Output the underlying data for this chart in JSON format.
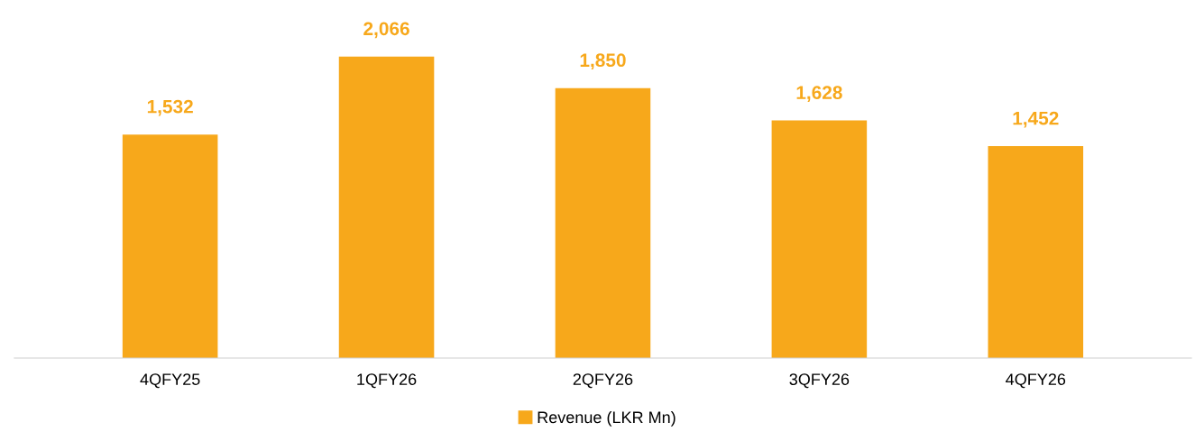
{
  "chart_data": {
    "type": "bar",
    "categories": [
      "4QFY25",
      "1QFY26",
      "2QFY26",
      "3QFY26",
      "4QFY26"
    ],
    "series": [
      {
        "name": "Revenue (LKR Mn)",
        "color": "#f7a81b",
        "values": [
          1532,
          2066,
          1850,
          1628,
          1452
        ],
        "value_labels": [
          "1,532",
          "2,066",
          "1,850",
          "1,628",
          "1,452"
        ]
      }
    ],
    "tick_labels": "x",
    "grid": false,
    "legend": "bottom"
  }
}
